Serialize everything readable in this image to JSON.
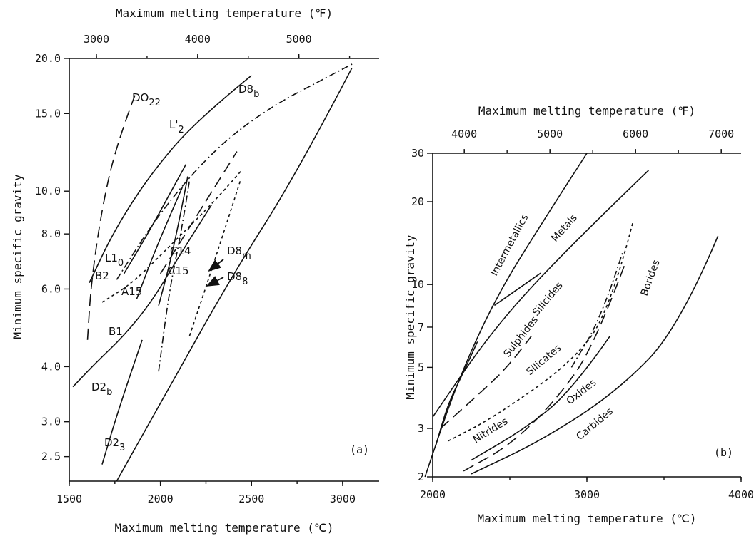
{
  "chart_data": [
    {
      "type": "line",
      "panel": "(a)",
      "xlabel": "Maximum melting temperature (℃)",
      "x2label": "Maximum melting temperature (℉)",
      "ylabel": "Minimum specific gravity",
      "xlim": [
        1500,
        3200
      ],
      "ylim": [
        2.2,
        20
      ],
      "yscale": "log",
      "x_ticks": [
        1500,
        2000,
        2500,
        3000
      ],
      "x_tick_labels": [
        "1500",
        "2000",
        "2500",
        "3000"
      ],
      "x2_ticks_F": [
        3000,
        4000,
        5000
      ],
      "x2_tick_labels": [
        "3000",
        "4000",
        "5000"
      ],
      "y_ticks": [
        2.5,
        3.0,
        4.0,
        6.0,
        8.0,
        10.0,
        15.0,
        20.0
      ],
      "y_tick_labels": [
        "2.5",
        "3.0",
        "4.0",
        "6.0",
        "8.0",
        "10.0",
        "15.0",
        "20.0"
      ],
      "series": [
        {
          "name": "DO22",
          "label_main": "DO",
          "label_sub": "22",
          "style": "longdash",
          "x": [
            1600,
            1620,
            1680,
            1760,
            1860
          ],
          "y": [
            4.6,
            6.2,
            9.2,
            12.8,
            16.5
          ]
        },
        {
          "name": "L'12",
          "label_main": "L'",
          "label_sub": "2",
          "style": "solid",
          "x": [
            1610,
            1750,
            1950,
            2200,
            2500
          ],
          "y": [
            6.2,
            8.2,
            11.0,
            14.5,
            18.3
          ]
        },
        {
          "name": "D8b",
          "label_main": "D8",
          "label_sub": "b",
          "style": "dashdot",
          "x": [
            1760,
            2000,
            2300,
            2600,
            2900,
            3060
          ],
          "y": [
            6.3,
            9.0,
            12.5,
            15.5,
            18.0,
            19.5
          ]
        },
        {
          "name": "L10",
          "label_main": "L1",
          "label_sub": "0",
          "style": "solid",
          "x": [
            1800,
            1930,
            2060,
            2140
          ],
          "y": [
            6.5,
            8.0,
            10.0,
            11.5
          ]
        },
        {
          "name": "B2",
          "label_main": "B2",
          "label_sub": "",
          "style": "dashed",
          "x": [
            1680,
            1850,
            2050,
            2300,
            2450
          ],
          "y": [
            5.6,
            6.2,
            7.5,
            9.5,
            11.2
          ]
        },
        {
          "name": "C14",
          "label_main": "C14",
          "label_sub": "",
          "style": "solid",
          "x": [
            1990,
            2080,
            2150
          ],
          "y": [
            5.5,
            7.6,
            10.8
          ]
        },
        {
          "name": "C15",
          "label_main": "C15",
          "label_sub": "",
          "style": "dashdot",
          "x": [
            1990,
            2050,
            2120,
            2160
          ],
          "y": [
            3.9,
            6.0,
            8.3,
            10.6
          ]
        },
        {
          "name": "D8m",
          "label_main": "D8",
          "label_sub": "m",
          "style": "longdash",
          "x": [
            2000,
            2200,
            2420
          ],
          "y": [
            6.5,
            8.8,
            12.3
          ]
        },
        {
          "name": "D88",
          "label_main": "D8",
          "label_sub": "8",
          "style": "dashed",
          "x": [
            2160,
            2280,
            2440
          ],
          "y": [
            4.7,
            6.6,
            10.6
          ]
        },
        {
          "name": "A15",
          "label_main": "A15",
          "label_sub": "",
          "style": "solid",
          "x": [
            1870,
            1990,
            2120
          ],
          "y": [
            5.7,
            7.7,
            10.2
          ]
        },
        {
          "name": "B1",
          "label_main": "B1",
          "label_sub": "",
          "style": "solid",
          "x": [
            1520,
            1650,
            1800,
            1950,
            2100,
            2280
          ],
          "y": [
            3.6,
            4.1,
            4.7,
            5.6,
            7.1,
            9.3
          ]
        },
        {
          "name": "D2b",
          "label_main": "D2",
          "label_sub": "b",
          "style": "solid",
          "x": [
            1680,
            1780,
            1900
          ],
          "y": [
            2.4,
            3.3,
            4.6
          ]
        },
        {
          "name": "D23",
          "label_main": "D2",
          "label_sub": "3",
          "style": "solid",
          "x": [
            1760,
            2050,
            2400,
            2750,
            3050
          ],
          "y": [
            2.2,
            3.6,
            6.5,
            11.0,
            19.0
          ]
        }
      ],
      "annotations": [
        {
          "text": "D8m",
          "main": "D8",
          "sub": "m",
          "arrow_to": [
            2220,
            6.6
          ]
        },
        {
          "text": "D88",
          "main": "D8",
          "sub": "8",
          "arrow_to": [
            2210,
            6.1
          ]
        }
      ]
    },
    {
      "type": "line",
      "panel": "(b)",
      "xlabel": "Maximum melting temperature (℃)",
      "x2label": "Maximum melting temperature (℉)",
      "ylabel": "Minimum specific gravity",
      "xlim": [
        2000,
        4000
      ],
      "ylim": [
        2,
        30
      ],
      "yscale": "log",
      "x_ticks": [
        2000,
        3000,
        4000
      ],
      "x_tick_labels": [
        "2000",
        "3000",
        "4000"
      ],
      "x2_ticks_F": [
        4000,
        5000,
        6000,
        7000
      ],
      "x2_tick_labels": [
        "4000",
        "5000",
        "6000",
        "7000"
      ],
      "y_ticks": [
        2,
        3,
        5,
        7,
        10,
        20,
        30
      ],
      "y_tick_labels": [
        "2",
        "3",
        "5",
        "7",
        "10",
        "20",
        "30"
      ],
      "series": [
        {
          "name": "Intermetallics",
          "style": "solid",
          "x": [
            1950,
            2150,
            2400,
            2700,
            3000
          ],
          "y": [
            2.0,
            4.3,
            8.8,
            16.5,
            30.0
          ]
        },
        {
          "name": "Metals",
          "style": "solid",
          "x": [
            2000,
            2400,
            2900,
            3400
          ],
          "y": [
            3.3,
            7.0,
            14.0,
            26.0
          ]
        },
        {
          "name": "Silicides",
          "style": "solid",
          "x": [
            2400,
            2700
          ],
          "y": [
            8.4,
            11.0
          ]
        },
        {
          "name": "Sulphides",
          "style": "solid",
          "x": [
            2020,
            2100,
            2200,
            2290
          ],
          "y": [
            2.6,
            3.7,
            4.8,
            6.2
          ]
        },
        {
          "name": "Silicates",
          "style": "longdash",
          "x": [
            2050,
            2300,
            2500,
            2640
          ],
          "y": [
            3.0,
            4.0,
            5.1,
            6.5
          ]
        },
        {
          "name": "Nitrides",
          "style": "dashed",
          "x": [
            2100,
            2400,
            2900,
            3150,
            3300
          ],
          "y": [
            2.7,
            3.3,
            5.2,
            8.0,
            17.0
          ]
        },
        {
          "name": "Borides",
          "style": "dashdot",
          "x": [
            2900,
            3100,
            3230
          ],
          "y": [
            5.0,
            7.7,
            13.0
          ]
        },
        {
          "name": "Oxides",
          "style": "longdash",
          "x": [
            2200,
            2500,
            2800,
            3050,
            3250
          ],
          "y": [
            2.1,
            2.6,
            3.8,
            6.0,
            12.0
          ]
        },
        {
          "name": "Carbides",
          "style": "solid",
          "x": [
            2250,
            2700,
            3200,
            3600,
            3850
          ],
          "y": [
            2.05,
            2.7,
            4.1,
            7.0,
            15.0
          ]
        },
        {
          "name": "Oxides-upper",
          "style": "solid",
          "x": [
            2250,
            2600,
            2900,
            3150
          ],
          "y": [
            2.3,
            3.0,
            4.1,
            6.5
          ]
        }
      ]
    }
  ]
}
